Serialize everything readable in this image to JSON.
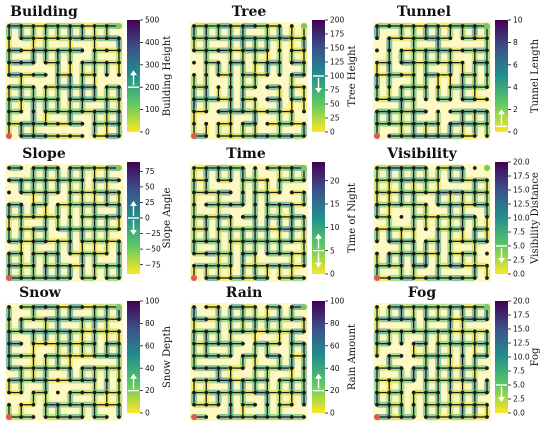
{
  "figure": {
    "colors": {
      "viridis": [
        "#fde725",
        "#5ec962",
        "#21918c",
        "#3b528b",
        "#440154"
      ],
      "start_node": "#e05555",
      "goal_node": "#7cc46a",
      "node": "#1a1a1a",
      "edge": "#1a1a1a",
      "arrow": "#ffffff"
    }
  },
  "chart_data": [
    {
      "type": "heatmap",
      "title": "Building",
      "colorbar_label": "Building Height",
      "ylim": [
        0,
        500
      ],
      "ticks": [
        "0",
        "100",
        "200",
        "300",
        "400",
        "500"
      ],
      "tick_values": [
        0,
        100,
        200,
        300,
        400,
        500
      ],
      "arrow": "up",
      "arrow_level": 200,
      "grid": "10x10 lattice graph",
      "start_marker": "bottom-left",
      "goal_marker": "top-right"
    },
    {
      "type": "heatmap",
      "title": "Tree",
      "colorbar_label": "Tree Height",
      "ylim": [
        0,
        200
      ],
      "ticks": [
        "0",
        "25",
        "50",
        "75",
        "100",
        "125",
        "150",
        "175",
        "200"
      ],
      "tick_values": [
        0,
        25,
        50,
        75,
        100,
        125,
        150,
        175,
        200
      ],
      "arrow": "down",
      "arrow_level": 100,
      "grid": "10x10 lattice graph",
      "start_marker": "bottom-left",
      "goal_marker": "top-right"
    },
    {
      "type": "heatmap",
      "title": "Tunnel",
      "colorbar_label": "Tunnel Length",
      "ylim": [
        0,
        10
      ],
      "ticks": [
        "0",
        "2",
        "4",
        "6",
        "8",
        "10"
      ],
      "tick_values": [
        0,
        2,
        4,
        6,
        8,
        10
      ],
      "arrow": "up",
      "arrow_level": 0.5,
      "grid": "10x10 lattice graph",
      "start_marker": "bottom-left",
      "goal_marker": "top-right"
    },
    {
      "type": "heatmap",
      "title": "Slope",
      "colorbar_label": "Slope Angle",
      "ylim": [
        -90,
        90
      ],
      "ticks": [
        "75",
        "50",
        "25",
        "0",
        "−25",
        "−50",
        "−75"
      ],
      "tick_values": [
        75,
        50,
        25,
        0,
        -25,
        -50,
        -75
      ],
      "arrow": "up-and-down",
      "arrow_level": 0,
      "grid": "10x10 lattice graph",
      "start_marker": "bottom-left",
      "goal_marker": "top-right"
    },
    {
      "type": "heatmap",
      "title": "Time",
      "colorbar_label": "Time of Night",
      "ylim": [
        0,
        24
      ],
      "ticks": [
        "0",
        "5",
        "10",
        "15",
        "20"
      ],
      "tick_values": [
        0,
        5,
        10,
        15,
        20
      ],
      "arrow": "up-and-down",
      "arrow_level": 5,
      "grid": "10x10 lattice graph",
      "start_marker": "bottom-left",
      "goal_marker": "top-right"
    },
    {
      "type": "heatmap",
      "title": "Visibility",
      "colorbar_label": "Visibility Distance",
      "ylim": [
        0,
        20
      ],
      "ticks": [
        "0.0",
        "2.5",
        "5.0",
        "7.5",
        "10.0",
        "12.5",
        "15.0",
        "17.5",
        "20.0"
      ],
      "tick_values": [
        0,
        2.5,
        5,
        7.5,
        10,
        12.5,
        15,
        17.5,
        20
      ],
      "arrow": "down",
      "arrow_level": 5,
      "grid": "10x10 lattice graph",
      "start_marker": "bottom-left",
      "goal_marker": "top-right"
    },
    {
      "type": "heatmap",
      "title": "Snow",
      "colorbar_label": "Snow Depth",
      "ylim": [
        0,
        100
      ],
      "ticks": [
        "0",
        "20",
        "40",
        "60",
        "80",
        "100"
      ],
      "tick_values": [
        0,
        20,
        40,
        60,
        80,
        100
      ],
      "arrow": "up",
      "arrow_level": 20,
      "grid": "10x10 lattice graph",
      "start_marker": "bottom-left",
      "goal_marker": "top-right"
    },
    {
      "type": "heatmap",
      "title": "Rain",
      "colorbar_label": "Rain Amount",
      "ylim": [
        0,
        100
      ],
      "ticks": [
        "0",
        "20",
        "40",
        "60",
        "80",
        "100"
      ],
      "tick_values": [
        0,
        20,
        40,
        60,
        80,
        100
      ],
      "arrow": "up",
      "arrow_level": 20,
      "grid": "10x10 lattice graph",
      "start_marker": "bottom-left",
      "goal_marker": "top-right"
    },
    {
      "type": "heatmap",
      "title": "Fog",
      "colorbar_label": "Fog",
      "ylim": [
        0,
        20
      ],
      "ticks": [
        "0.0",
        "2.5",
        "5.0",
        "7.5",
        "10.0",
        "12.5",
        "15.0",
        "17.5",
        "20.0"
      ],
      "tick_values": [
        0,
        2.5,
        5,
        7.5,
        10,
        12.5,
        15,
        17.5,
        20
      ],
      "arrow": "down",
      "arrow_level": 5,
      "grid": "10x10 lattice graph",
      "start_marker": "bottom-left",
      "goal_marker": "top-right"
    }
  ]
}
